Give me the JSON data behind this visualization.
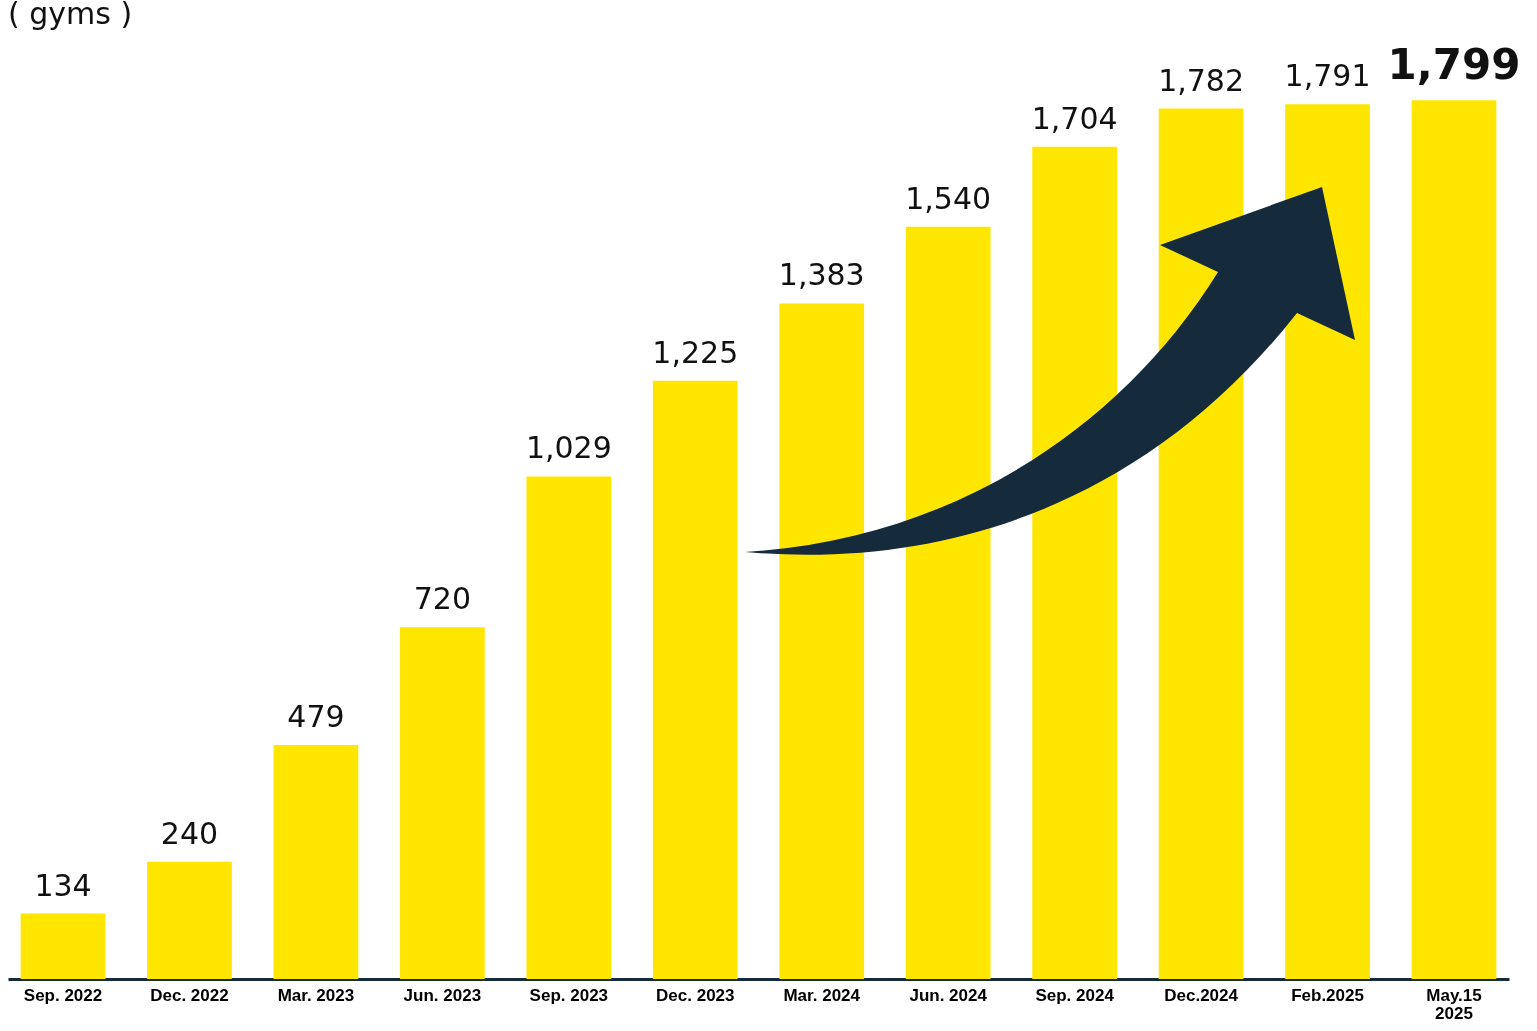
{
  "chart_data": {
    "type": "bar",
    "ylabel": "( gyms )",
    "categories": [
      "Sep. 2022",
      "Dec. 2022",
      "Mar. 2023",
      "Jun. 2023",
      "Sep. 2023",
      "Dec. 2023",
      "Mar. 2024",
      "Jun. 2024",
      "Sep. 2024",
      "Dec.2024",
      "Feb.2025",
      "May.15\n2025"
    ],
    "values": [
      134,
      240,
      479,
      720,
      1029,
      1225,
      1383,
      1540,
      1704,
      1782,
      1791,
      1799
    ],
    "value_labels": [
      "134",
      "240",
      "479",
      "720",
      "1,029",
      "1,225",
      "1,383",
      "1,540",
      "1,704",
      "1,782",
      "1,791",
      "1,799"
    ],
    "color": "#ffe600"
  }
}
